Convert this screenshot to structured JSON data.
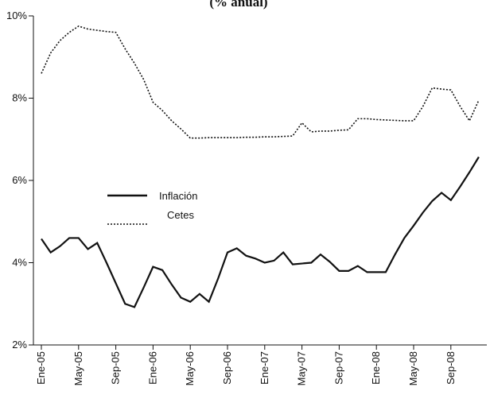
{
  "chart_data": {
    "type": "line",
    "title": "(% anual)",
    "categories": [
      "Ene-05",
      null,
      null,
      null,
      "May-05",
      null,
      null,
      null,
      "Sep-05",
      null,
      null,
      null,
      "Ene-06",
      null,
      null,
      null,
      "May-06",
      null,
      null,
      null,
      "Sep-06",
      null,
      null,
      null,
      "Ene-07",
      null,
      null,
      null,
      "May-07",
      null,
      null,
      null,
      "Sep-07",
      null,
      null,
      null,
      "Ene-08",
      null,
      null,
      null,
      "May-08",
      null,
      null,
      null,
      "Sep-08",
      null,
      null,
      null
    ],
    "series": [
      {
        "name": "Inflación",
        "color": "#111111",
        "style": "solid",
        "values": [
          4.58,
          4.25,
          4.4,
          4.6,
          4.6,
          4.33,
          4.48,
          4.0,
          3.5,
          3.0,
          2.92,
          3.4,
          3.9,
          3.82,
          3.47,
          3.15,
          3.05,
          3.24,
          3.05,
          3.62,
          4.25,
          4.35,
          4.17,
          4.1,
          4.0,
          4.05,
          4.25,
          3.96,
          3.98,
          4.0,
          4.2,
          4.02,
          3.8,
          3.8,
          3.92,
          3.77,
          3.77,
          3.77,
          4.2,
          4.6,
          4.9,
          5.22,
          5.5,
          5.7,
          5.52,
          5.85,
          6.2,
          6.57
        ]
      },
      {
        "name": "Cetes",
        "color": "#111111",
        "style": "dotted",
        "values": [
          8.6,
          9.1,
          9.4,
          9.6,
          9.75,
          9.68,
          9.65,
          9.62,
          9.6,
          9.2,
          8.85,
          8.45,
          7.9,
          7.7,
          7.45,
          7.25,
          7.03,
          7.03,
          7.04,
          7.04,
          7.04,
          7.04,
          7.05,
          7.05,
          7.06,
          7.06,
          7.07,
          7.08,
          7.4,
          7.18,
          7.2,
          7.2,
          7.22,
          7.23,
          7.5,
          7.5,
          7.48,
          7.47,
          7.46,
          7.45,
          7.45,
          7.8,
          8.25,
          8.22,
          8.2,
          7.8,
          7.45,
          7.95
        ]
      }
    ],
    "ylim": [
      2,
      10
    ],
    "yticks": [
      {
        "value": 2,
        "label": "2%"
      },
      {
        "value": 4,
        "label": "4%"
      },
      {
        "value": 6,
        "label": "6%"
      },
      {
        "value": 8,
        "label": "8%"
      },
      {
        "value": 10,
        "label": "10%"
      }
    ],
    "grid": false
  }
}
